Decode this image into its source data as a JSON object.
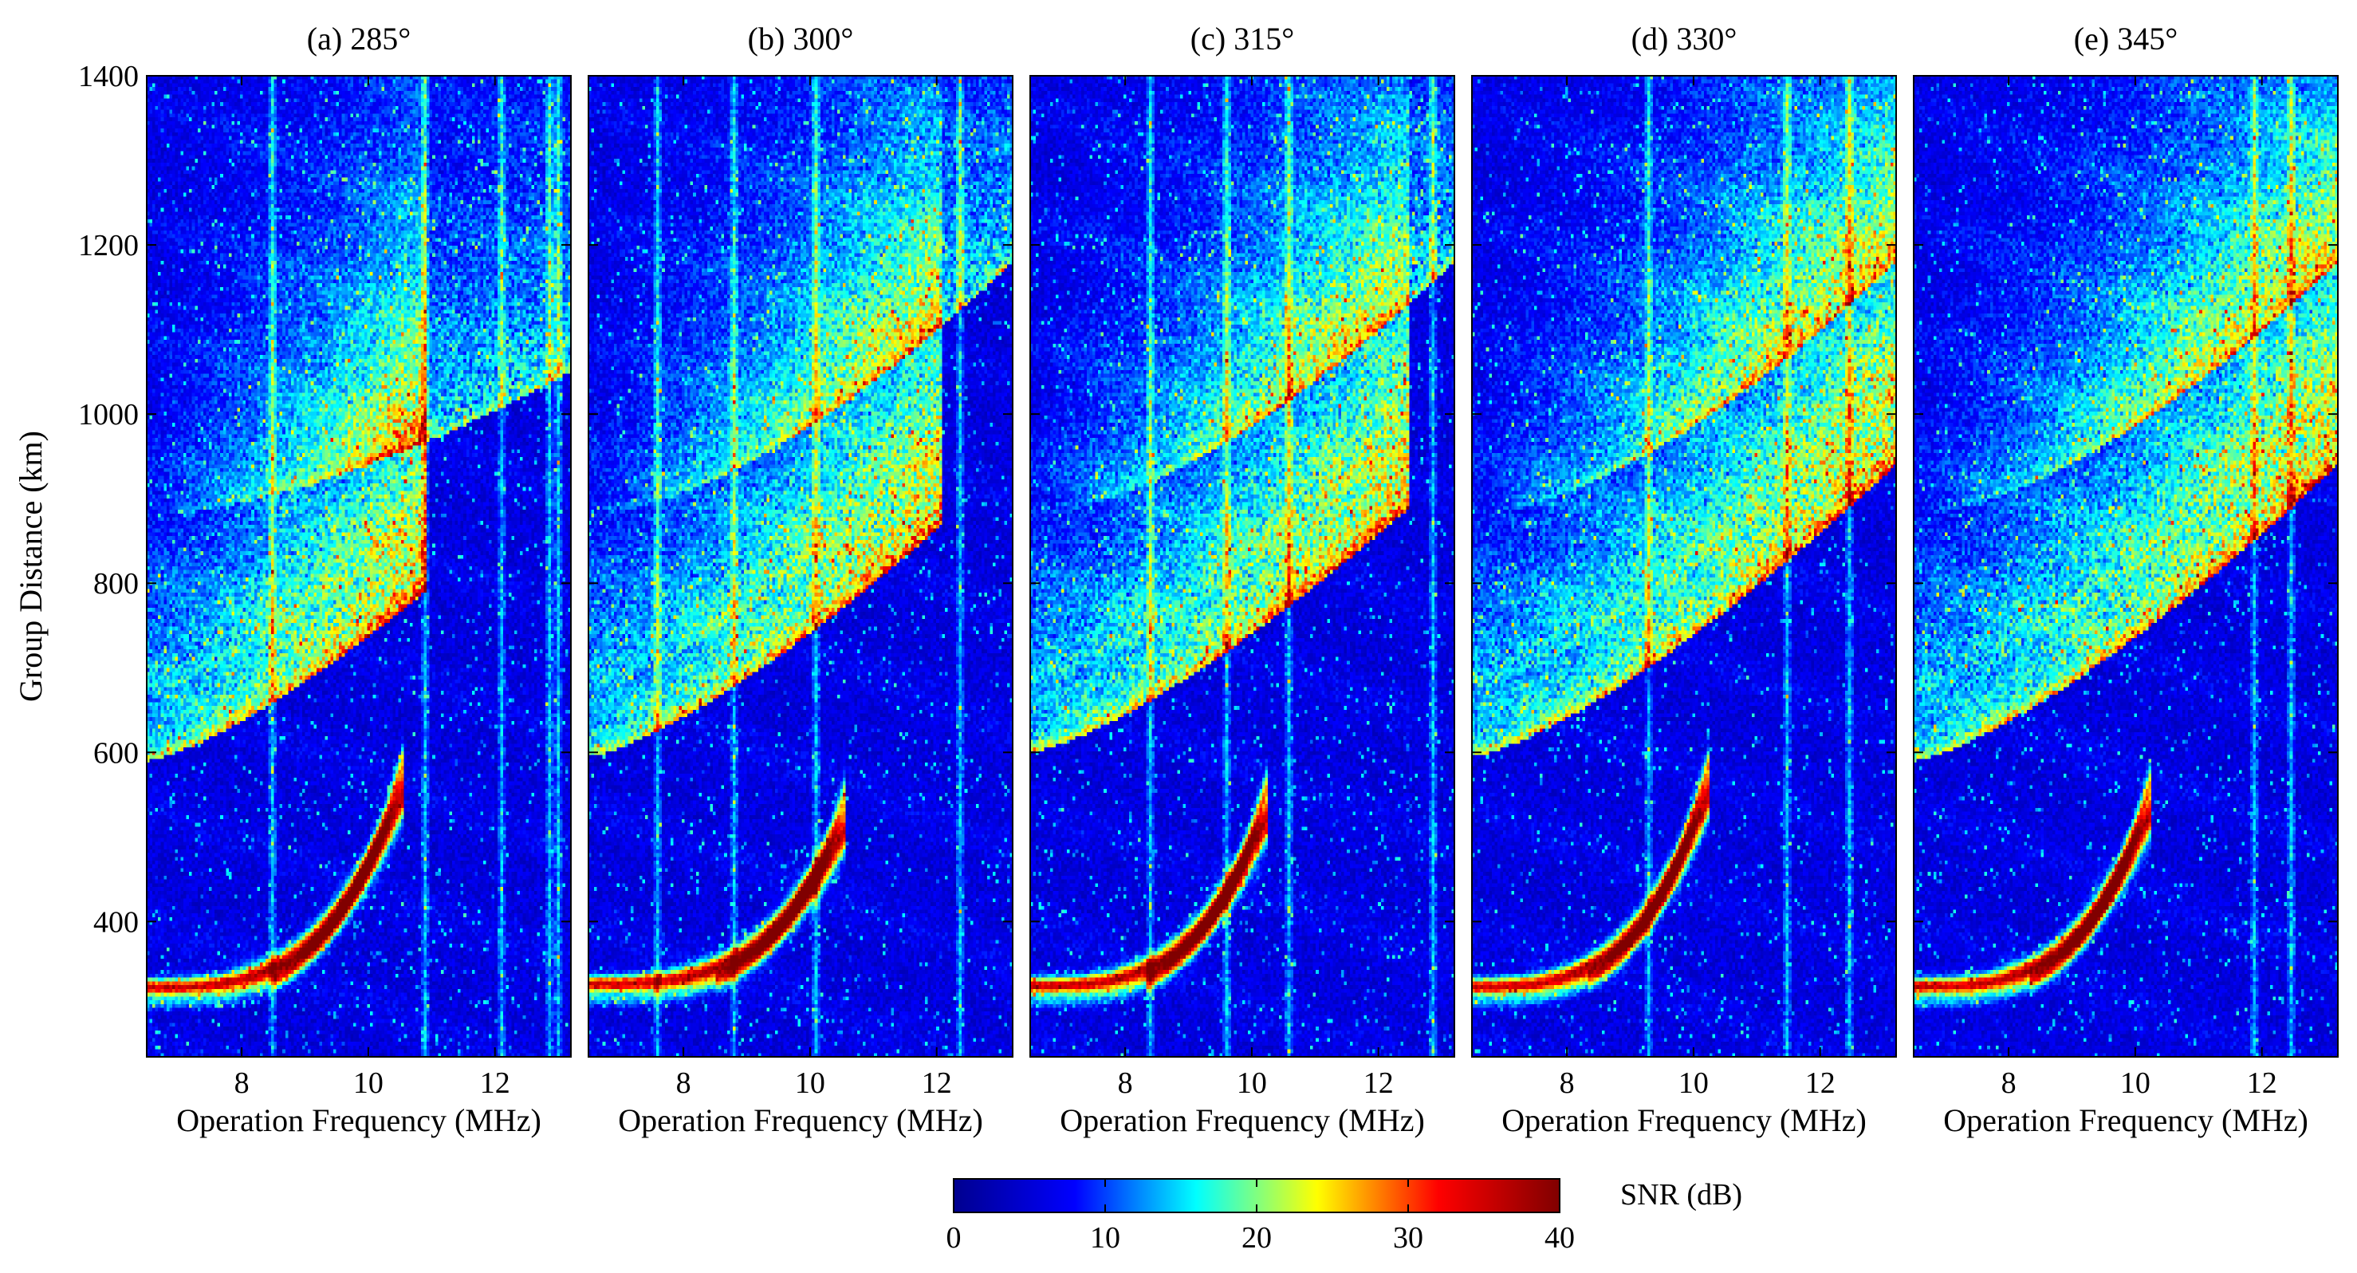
{
  "chart_data": {
    "type": "heatmap",
    "ylabel": "Group Distance (km)",
    "ylim": [
      240,
      1400
    ],
    "yticks": [
      400,
      600,
      800,
      1000,
      1200,
      1400
    ],
    "xlabel": "Operation Frequency (MHz)",
    "xlim": [
      6.5,
      13.2
    ],
    "xticks": [
      8,
      10,
      12
    ],
    "colorbar": {
      "label": "SNR (dB)",
      "range": [
        0,
        40
      ],
      "ticks": [
        0,
        10,
        20,
        30,
        40
      ],
      "colormap": [
        "#00008f",
        "#0000ff",
        "#00ffff",
        "#ffff00",
        "#ff0000",
        "#800000"
      ]
    },
    "panels": [
      {
        "title": "(a) 285°",
        "one_hop_start_km": 590,
        "one_hop_edge_freq_mhz": 10.9,
        "one_hop_edge_km": 790,
        "one_hop_outer_edge_km": 870,
        "two_hop_start_km": 880,
        "two_hop_edge_km": 1050,
        "ground_low_km": 322,
        "ground_high_freq_mhz": 10.5,
        "ground_high_km": 540,
        "vertical_stripes_mhz": [
          8.5,
          10.9,
          12.1,
          12.9,
          13.0
        ]
      },
      {
        "title": "(b) 300°",
        "one_hop_start_km": 595,
        "one_hop_edge_freq_mhz": 12.1,
        "one_hop_edge_km": 870,
        "one_hop_outer_edge_km": 900,
        "two_hop_start_km": 880,
        "two_hop_edge_km": 1180,
        "ground_low_km": 326,
        "ground_high_freq_mhz": 10.5,
        "ground_high_km": 500,
        "vertical_stripes_mhz": [
          7.6,
          8.8,
          10.1,
          12.4
        ]
      },
      {
        "title": "(c) 315°",
        "one_hop_start_km": 600,
        "one_hop_edge_freq_mhz": 12.5,
        "one_hop_edge_km": 890,
        "one_hop_outer_edge_km": 930,
        "two_hop_start_km": 880,
        "two_hop_edge_km": 1180,
        "ground_low_km": 324,
        "ground_high_freq_mhz": 10.2,
        "ground_high_km": 515,
        "vertical_stripes_mhz": [
          8.4,
          9.6,
          10.6,
          12.9
        ]
      },
      {
        "title": "(d) 330°",
        "one_hop_start_km": 595,
        "one_hop_edge_freq_mhz": 13.2,
        "one_hop_edge_km": 940,
        "one_hop_outer_edge_km": 960,
        "two_hop_start_km": 880,
        "two_hop_edge_km": 1180,
        "ground_low_km": 323,
        "ground_high_freq_mhz": 10.2,
        "ground_high_km": 540,
        "vertical_stripes_mhz": [
          9.3,
          11.5,
          12.5
        ]
      },
      {
        "title": "(e) 345°",
        "one_hop_start_km": 590,
        "one_hop_edge_freq_mhz": 13.2,
        "one_hop_edge_km": 940,
        "one_hop_outer_edge_km": 960,
        "two_hop_start_km": 880,
        "two_hop_edge_km": 1180,
        "ground_low_km": 323,
        "ground_high_freq_mhz": 10.2,
        "ground_high_km": 520,
        "vertical_stripes_mhz": [
          11.9,
          12.5
        ]
      }
    ]
  }
}
